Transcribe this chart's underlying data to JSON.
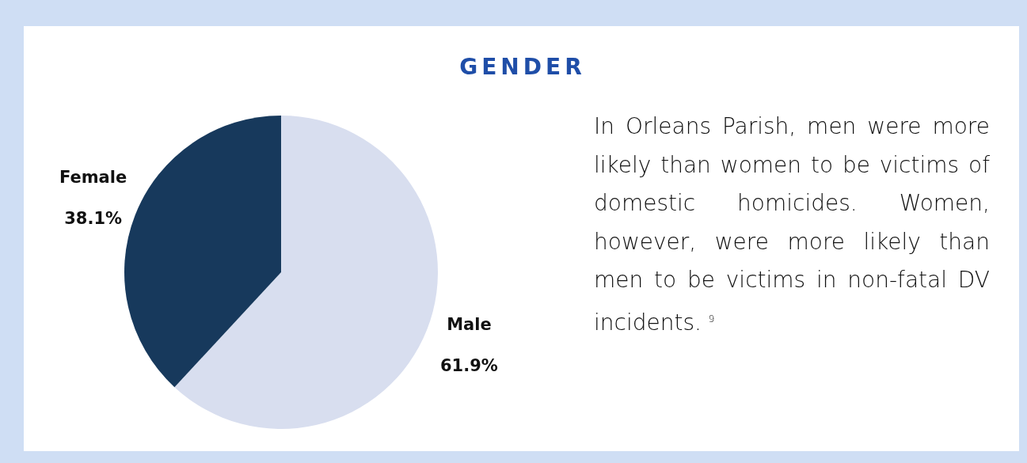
{
  "chart_data": {
    "type": "pie",
    "title": "GENDER",
    "categories": [
      "Male",
      "Female"
    ],
    "values": [
      61.9,
      38.1
    ],
    "value_labels": [
      "61.9%",
      "38.1%"
    ],
    "colors": [
      "#d8deef",
      "#17395c"
    ],
    "annotations": [
      "In Orleans Parish, men were more likely than women to be victims of domestic homicides. Women, however, were more likely than men to be victims in non-fatal DV incidents. $^{9}$"
    ]
  }
}
